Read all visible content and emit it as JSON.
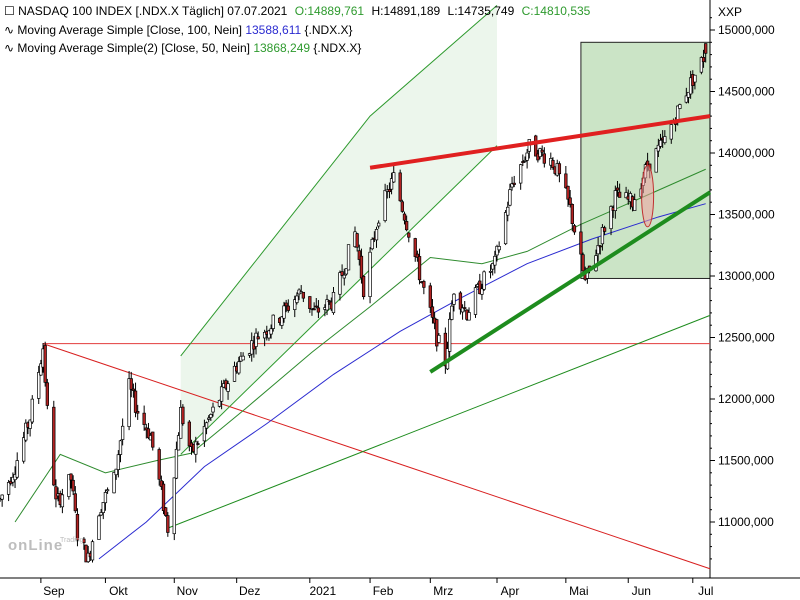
{
  "header": {
    "title": "NASDAQ 100 INDEX [.NDX.X  Täglich] 07.07.2021",
    "open": "O:14889,761",
    "high": "H:14891,189",
    "low": "L:14735,749",
    "close": "C:14810,535",
    "symbol": "XXP",
    "ma1_label": "Moving Average Simple [Close, 100, Nein]",
    "ma1_value": "13588,611",
    "ma1_suffix": "{.NDX.X}",
    "ma2_label": "Moving Average Simple(2) [Close, 50, Nein]",
    "ma2_value": "13868,249",
    "ma2_suffix": "{.NDX.X}"
  },
  "watermark": {
    "brand": "onLine",
    "small": "Trading"
  },
  "colors": {
    "up": "#ffffff",
    "down": "#b22222",
    "wick": "#000000",
    "ma100": "#2b2bd0",
    "ma50": "#2e8b2e",
    "channel": "#2e9a2e",
    "resistance": "#e02020",
    "support": "#1e8c1e",
    "box": "#8fc08f"
  },
  "chart_data": {
    "type": "candlestick",
    "title": "NASDAQ 100 INDEX [.NDX.X  Täglich] 07.07.2021",
    "x_labels": [
      "Sep",
      "Okt",
      "Nov",
      "Dez",
      "2021",
      "Feb",
      "Mrz",
      "Apr",
      "Mai",
      "Jun",
      "Jul"
    ],
    "y_ticks": [
      11000,
      11500,
      12000,
      12500,
      13000,
      13500,
      14000,
      14500,
      15000
    ],
    "y_tick_labels": [
      "11000,000",
      "11500,000",
      "12000,000",
      "12500,000",
      "13000,000",
      "13500,000",
      "14000,000",
      "14500,000",
      "15000,000"
    ],
    "ylim": [
      10600,
      15100
    ],
    "x_range_days": [
      "2020-08-13",
      "2021-07-09"
    ],
    "month_starts": [
      "2020-09-01",
      "2020-10-01",
      "2020-11-02",
      "2020-12-01",
      "2021-01-04",
      "2021-02-01",
      "2021-03-01",
      "2021-04-01",
      "2021-05-03",
      "2021-06-01",
      "2021-07-01"
    ],
    "close_path": [
      [
        "2020-08-13",
        11180
      ],
      [
        "2020-08-20",
        11450
      ],
      [
        "2020-08-27",
        11850
      ],
      [
        "2020-09-02",
        12420
      ],
      [
        "2020-09-04",
        11900
      ],
      [
        "2020-09-08",
        11150
      ],
      [
        "2020-09-15",
        11350
      ],
      [
        "2020-09-18",
        10900
      ],
      [
        "2020-09-23",
        10700
      ],
      [
        "2020-09-28",
        11100
      ],
      [
        "2020-10-05",
        11350
      ],
      [
        "2020-10-12",
        12100
      ],
      [
        "2020-10-16",
        11900
      ],
      [
        "2020-10-22",
        11700
      ],
      [
        "2020-10-30",
        10950
      ],
      [
        "2020-11-05",
        11900
      ],
      [
        "2020-11-10",
        11550
      ],
      [
        "2020-11-20",
        11900
      ],
      [
        "2020-11-30",
        12250
      ],
      [
        "2020-12-10",
        12500
      ],
      [
        "2020-12-20",
        12650
      ],
      [
        "2020-12-31",
        12880
      ],
      [
        "2021-01-06",
        12700
      ],
      [
        "2021-01-15",
        12800
      ],
      [
        "2021-01-25",
        13350
      ],
      [
        "2021-01-29",
        12900
      ],
      [
        "2021-02-05",
        13500
      ],
      [
        "2021-02-12",
        13800
      ],
      [
        "2021-02-17",
        13500
      ],
      [
        "2021-02-25",
        12950
      ],
      [
        "2021-03-04",
        12500
      ],
      [
        "2021-03-08",
        12300
      ],
      [
        "2021-03-12",
        12900
      ],
      [
        "2021-03-18",
        12700
      ],
      [
        "2021-03-25",
        12950
      ],
      [
        "2021-03-31",
        13100
      ],
      [
        "2021-04-08",
        13750
      ],
      [
        "2021-04-16",
        14050
      ],
      [
        "2021-04-26",
        13950
      ],
      [
        "2021-04-29",
        13850
      ],
      [
        "2021-05-05",
        13550
      ],
      [
        "2021-05-12",
        12950
      ],
      [
        "2021-05-18",
        13250
      ],
      [
        "2021-05-26",
        13650
      ],
      [
        "2021-06-03",
        13600
      ],
      [
        "2021-06-10",
        13900
      ],
      [
        "2021-06-18",
        14100
      ],
      [
        "2021-06-28",
        14500
      ],
      [
        "2021-07-07",
        14810
      ]
    ],
    "last_candle": {
      "date": "2021-07-07",
      "open": 14889.761,
      "high": 14891.189,
      "low": 14735.749,
      "close": 14810.535
    },
    "series": [
      {
        "name": "Moving Average Simple [Close, 100, Nein]",
        "last": 13588.611,
        "points": [
          [
            "2020-09-28",
            10700
          ],
          [
            "2020-10-20",
            11000
          ],
          [
            "2020-11-16",
            11450
          ],
          [
            "2020-12-15",
            11800
          ],
          [
            "2021-01-15",
            12200
          ],
          [
            "2021-02-15",
            12550
          ],
          [
            "2021-03-15",
            12820
          ],
          [
            "2021-04-15",
            13100
          ],
          [
            "2021-05-15",
            13300
          ],
          [
            "2021-06-15",
            13480
          ],
          [
            "2021-07-07",
            13588
          ]
        ]
      },
      {
        "name": "Moving Average Simple(2) [Close, 50, Nein]",
        "last": 13868.249,
        "points": [
          [
            "2020-08-20",
            11000
          ],
          [
            "2020-09-10",
            11550
          ],
          [
            "2020-10-01",
            11400
          ],
          [
            "2020-10-25",
            11500
          ],
          [
            "2020-11-10",
            11560
          ],
          [
            "2020-12-05",
            11920
          ],
          [
            "2021-01-05",
            12380
          ],
          [
            "2021-02-01",
            12750
          ],
          [
            "2021-03-01",
            13150
          ],
          [
            "2021-03-25",
            13100
          ],
          [
            "2021-04-15",
            13200
          ],
          [
            "2021-05-10",
            13420
          ],
          [
            "2021-06-05",
            13620
          ],
          [
            "2021-07-07",
            13868
          ]
        ]
      }
    ],
    "annotations": {
      "horizontal_line": 12450,
      "resistance_line": [
        [
          "2021-02-01",
          13880
        ],
        [
          "2021-07-09",
          14300
        ]
      ],
      "support_line": [
        [
          "2021-03-01",
          12220
        ],
        [
          "2021-07-09",
          13680
        ]
      ],
      "falling_line": [
        [
          "2020-09-02",
          12450
        ],
        [
          "2021-07-09",
          10620
        ]
      ],
      "long_trend_line": [
        [
          "2020-10-30",
          10950
        ],
        [
          "2021-07-09",
          12680
        ]
      ],
      "channel_upper": [
        [
          "2020-11-05",
          12350
        ],
        [
          "2021-02-01",
          14300
        ],
        [
          "2021-04-01",
          15200
        ]
      ],
      "channel_lower": [
        [
          "2020-11-05",
          11550
        ],
        [
          "2021-04-01",
          14060
        ]
      ],
      "highlight_box": {
        "from": "2021-05-10",
        "to": "2021-07-09",
        "low": 12980,
        "high": 14900
      },
      "highlight_ellipse": {
        "date": "2021-06-10",
        "low": 13400,
        "high": 13900
      }
    }
  }
}
